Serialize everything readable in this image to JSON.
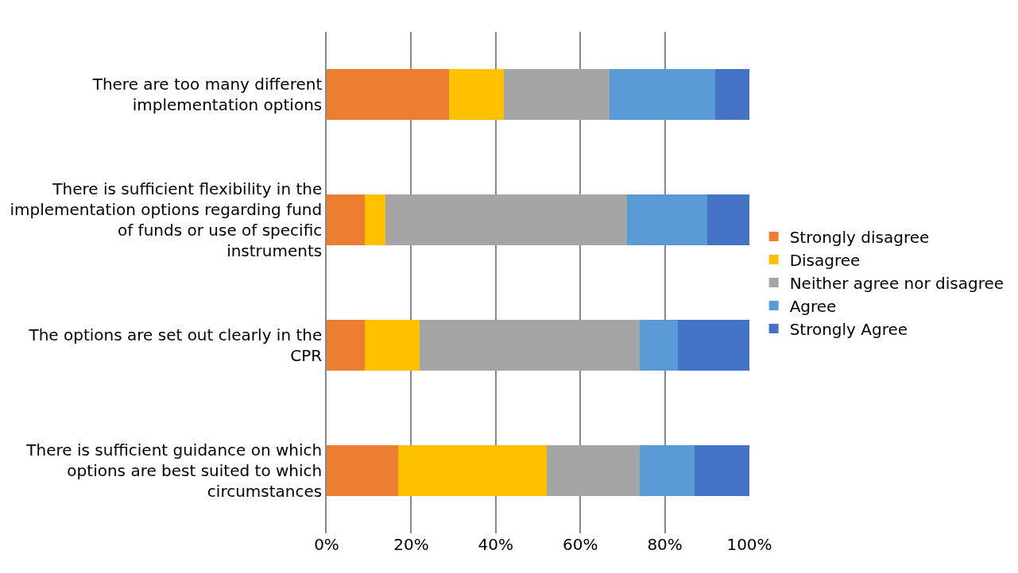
{
  "chart_data": {
    "type": "bar",
    "orientation": "horizontal",
    "stacked": true,
    "categories": [
      "There are too many different implementation options",
      "There is sufficient flexibility in the implementation options regarding fund of funds or use of specific instruments",
      "The options are set out clearly in the CPR",
      "There is sufficient guidance on which options are best suited to which circumstances"
    ],
    "series": [
      {
        "name": "Strongly disagree",
        "color": "#ed7d31",
        "values": [
          29,
          9,
          9,
          17
        ]
      },
      {
        "name": "Disagree",
        "color": "#ffc000",
        "values": [
          13,
          5,
          13,
          35
        ]
      },
      {
        "name": "Neither agree nor disagree",
        "color": "#a5a5a5",
        "values": [
          25,
          57,
          52,
          22
        ]
      },
      {
        "name": "Agree",
        "color": "#5b9bd5",
        "values": [
          25,
          19,
          9,
          13
        ]
      },
      {
        "name": "Strongly Agree",
        "color": "#4472c4",
        "values": [
          8,
          10,
          17,
          13
        ]
      }
    ],
    "xlim": [
      0,
      100
    ],
    "xticks": [
      {
        "value": 0,
        "label": "0%"
      },
      {
        "value": 20,
        "label": "20%"
      },
      {
        "value": 40,
        "label": "40%"
      },
      {
        "value": 60,
        "label": "60%"
      },
      {
        "value": 80,
        "label": "80%"
      },
      {
        "value": 100,
        "label": "100%"
      }
    ],
    "grid": "x",
    "legend": "right"
  }
}
